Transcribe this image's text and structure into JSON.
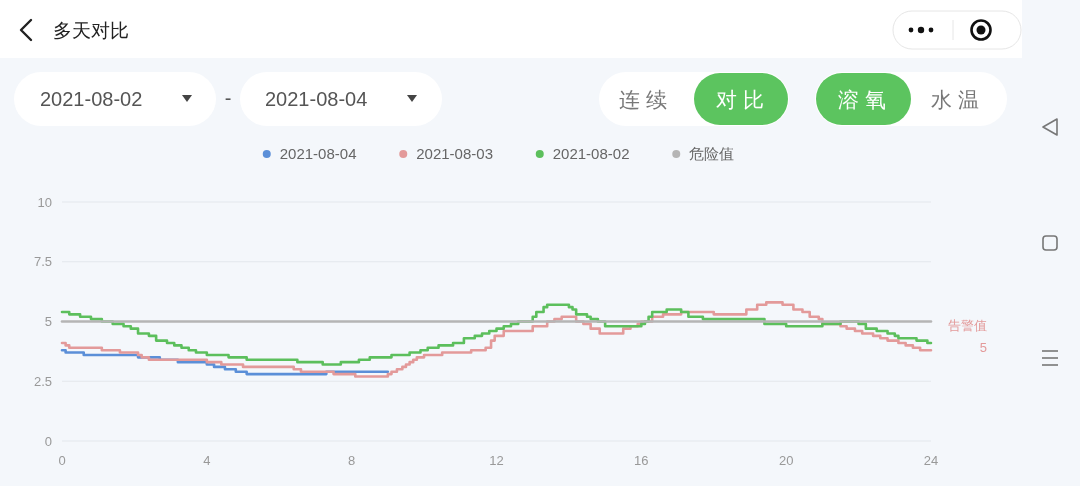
{
  "chart_data": {
    "type": "step",
    "title": "多天对比",
    "annotations": [
      "2021-08-02",
      "-",
      "2021-08-04",
      "连 续",
      "对 比",
      "溶 氧",
      "水 温",
      {
        "text": "告警值",
        "x": 24,
        "y": 5
      },
      "5"
    ],
    "xlim": [
      0,
      24
    ],
    "xticks": [
      0,
      4,
      8,
      12,
      16,
      20,
      24
    ],
    "ylim": [
      0,
      10
    ],
    "yticks": [
      0,
      2.5,
      5,
      7.5,
      10
    ],
    "grid": "y",
    "legend": "top",
    "series": [
      {
        "name": "2021-08-04",
        "color": "#5b8fd8",
        "x": [
          0,
          0.1,
          0.6,
          2.1,
          2.7,
          3.2,
          4.0,
          4.2,
          4.5,
          4.8,
          5.1,
          7.3,
          9.0
        ],
        "values": [
          3.8,
          3.7,
          3.6,
          3.5,
          3.4,
          3.3,
          3.2,
          3.1,
          3.0,
          2.9,
          2.8,
          2.9,
          2.9
        ]
      },
      {
        "name": "2021-08-03",
        "color": "#e39a9a",
        "x": [
          0,
          0.1,
          0.2,
          1.1,
          1.6,
          2.1,
          2.2,
          2.4,
          4.0,
          4.4,
          5.0,
          6.4,
          6.6,
          7.5,
          8.1,
          9.0,
          9.1,
          9.25,
          9.4,
          9.5,
          9.6,
          9.7,
          9.8,
          10.0,
          10.5,
          11.3,
          11.7,
          11.85,
          11.95,
          12.2,
          13.0,
          13.4,
          13.6,
          13.8,
          14.2,
          14.4,
          14.6,
          14.85,
          15.5,
          15.7,
          15.9,
          16.0,
          16.3,
          16.6,
          17.1,
          18.0,
          18.9,
          19.2,
          19.45,
          19.9,
          20.2,
          20.45,
          20.65,
          20.9,
          21.0,
          21.5,
          21.67,
          21.9,
          22.1,
          22.4,
          22.6,
          22.8,
          23.1,
          23.3,
          23.5,
          23.7,
          24
        ],
        "values": [
          4.1,
          4.0,
          3.9,
          3.8,
          3.7,
          3.6,
          3.5,
          3.4,
          3.3,
          3.2,
          3.1,
          3.0,
          2.9,
          2.8,
          2.7,
          2.8,
          2.9,
          3.0,
          3.1,
          3.2,
          3.3,
          3.4,
          3.5,
          3.6,
          3.7,
          3.8,
          3.9,
          4.2,
          4.4,
          4.6,
          4.8,
          5.0,
          5.1,
          5.2,
          5.0,
          4.9,
          4.7,
          4.5,
          4.7,
          4.8,
          4.9,
          5.0,
          5.2,
          5.3,
          5.4,
          5.3,
          5.5,
          5.7,
          5.8,
          5.7,
          5.5,
          5.4,
          5.2,
          5.1,
          4.9,
          4.8,
          4.7,
          4.6,
          4.5,
          4.4,
          4.3,
          4.2,
          4.1,
          4.0,
          3.9,
          3.8,
          3.8
        ]
      },
      {
        "name": "2021-08-02",
        "color": "#5cbf5c",
        "x": [
          0,
          0.2,
          0.5,
          0.8,
          1.1,
          1.4,
          1.7,
          1.9,
          2.1,
          2.4,
          2.6,
          2.9,
          3.1,
          3.3,
          3.5,
          3.7,
          4.0,
          4.6,
          5.1,
          6.5,
          7.2,
          7.7,
          8.2,
          8.5,
          9.1,
          9.6,
          9.9,
          10.1,
          10.4,
          10.8,
          11.1,
          11.4,
          11.6,
          11.8,
          12.0,
          12.2,
          12.4,
          12.6,
          13.0,
          13.1,
          13.3,
          13.4,
          14.0,
          14.1,
          14.2,
          14.5,
          14.6,
          14.8,
          15.0,
          16.0,
          16.1,
          16.2,
          16.3,
          16.7,
          17.1,
          17.3,
          17.7,
          19.4,
          20.0,
          21.0,
          21.5,
          22.0,
          22.2,
          22.5,
          22.8,
          23.0,
          23.1,
          23.6,
          23.9,
          24
        ],
        "values": [
          5.4,
          5.3,
          5.2,
          5.1,
          5.0,
          4.9,
          4.8,
          4.7,
          4.5,
          4.4,
          4.2,
          4.1,
          4.0,
          3.9,
          3.8,
          3.7,
          3.6,
          3.5,
          3.4,
          3.3,
          3.2,
          3.3,
          3.4,
          3.5,
          3.6,
          3.7,
          3.8,
          3.9,
          4.0,
          4.1,
          4.3,
          4.4,
          4.5,
          4.6,
          4.7,
          4.8,
          4.9,
          5.0,
          5.2,
          5.4,
          5.6,
          5.7,
          5.6,
          5.5,
          5.3,
          5.2,
          5.1,
          5.0,
          4.8,
          4.9,
          5.0,
          5.2,
          5.4,
          5.5,
          5.4,
          5.2,
          5.1,
          4.9,
          4.8,
          4.9,
          5.0,
          4.9,
          4.7,
          4.6,
          4.5,
          4.4,
          4.3,
          4.2,
          4.1,
          4.1
        ]
      },
      {
        "name": "危险值",
        "type": "line",
        "color": "#b5b5b5",
        "x": [
          0,
          24
        ],
        "values": [
          5,
          5
        ]
      }
    ]
  }
}
